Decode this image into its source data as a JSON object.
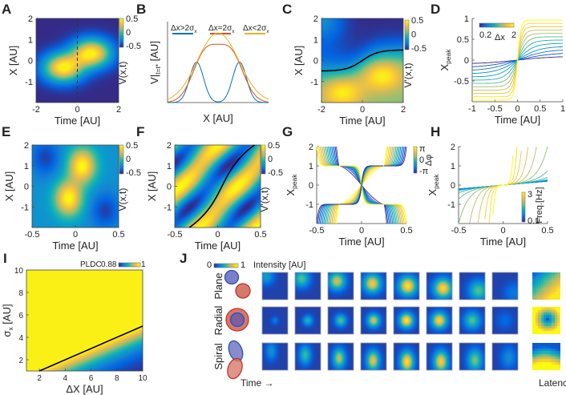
{
  "panel_labels": [
    "A",
    "B",
    "C",
    "D",
    "E",
    "F",
    "G",
    "H",
    "I",
    "J"
  ],
  "chart_data": [
    {
      "panel": "A",
      "type": "heatmap",
      "xlabel": "Time [AU]",
      "ylabel": "X [AU]",
      "xlim": [
        -2,
        2
      ],
      "ylim": [
        -2,
        2
      ],
      "xticks": [
        -2,
        0,
        2
      ],
      "yticks": [
        -1,
        0,
        1,
        2
      ],
      "colorbar": {
        "label": "V(x,t)",
        "ticks": [
          "0.5",
          "0",
          "-0.5"
        ]
      },
      "reference_line": {
        "style": "dashed",
        "time": 0
      }
    },
    {
      "panel": "B",
      "type": "line",
      "xlabel": "X [AU]",
      "ylabel": "V|",
      "ylabel_sub": "t=t*",
      "ylabel_tail": " [AU]",
      "series": [
        {
          "name": "Δx>2σ",
          "name_sub": "x",
          "color": "#0072BD"
        },
        {
          "name": "Δx=2σ",
          "name_sub": "x",
          "color": "#D95319"
        },
        {
          "name": "Δx<2σ",
          "name_sub": "x",
          "color": "#EDB120"
        }
      ]
    },
    {
      "panel": "C",
      "type": "heatmap",
      "xlabel": "Time [AU]",
      "ylabel": "X [AU]",
      "xlim": [
        -2,
        2
      ],
      "ylim": [
        -2,
        2
      ],
      "xticks": [
        -2,
        0,
        2
      ],
      "yticks": [
        -1,
        0,
        1,
        2
      ],
      "colorbar": {
        "label": "V'(x,t)",
        "ticks": [
          "0.5",
          "0",
          "-0.5"
        ]
      }
    },
    {
      "panel": "D",
      "type": "line",
      "xlabel": "Time [AU]",
      "ylabel": "X",
      "ylabel_sub": "peak",
      "xlim": [
        -1,
        1
      ],
      "ylim": [
        -1,
        1
      ],
      "xticks": [
        -1,
        -0.5,
        0,
        0.5,
        1
      ],
      "yticks": [
        -0.5,
        0,
        0.5,
        1
      ],
      "colorbar": {
        "label": "Δx",
        "ticks": [
          "0.2",
          "2"
        ]
      },
      "delta_x": [
        0.2,
        0.36,
        0.53,
        0.69,
        0.85,
        1.02,
        1.18,
        1.35,
        1.51,
        1.67,
        1.84,
        2.0
      ]
    },
    {
      "panel": "E",
      "type": "heatmap",
      "xlabel": "Time [AU]",
      "ylabel": "X [AU]",
      "xlim": [
        -0.5,
        0.5
      ],
      "ylim": [
        -2,
        2
      ],
      "xticks": [
        -0.5,
        0,
        0.5
      ],
      "yticks": [
        -1,
        0,
        1,
        2
      ],
      "colorbar": {
        "label": "V(x,t)",
        "ticks": [
          "0.5",
          "0",
          "-0.5"
        ]
      }
    },
    {
      "panel": "F",
      "type": "heatmap",
      "xlabel": "Time [AU]",
      "ylabel": "X [AU]",
      "xlim": [
        -0.5,
        0.5
      ],
      "ylim": [
        -2,
        2
      ],
      "xticks": [
        -0.5,
        0,
        0.5
      ],
      "yticks": [
        -1,
        0,
        1,
        2
      ],
      "colorbar": {
        "label": "V'(x,t)",
        "ticks": [
          "0.5",
          "0",
          "-0.5"
        ]
      }
    },
    {
      "panel": "G",
      "type": "line",
      "xlabel": "Time [AU]",
      "ylabel": "X",
      "ylabel_sub": "peak",
      "xlim": [
        -0.5,
        0.5
      ],
      "ylim": [
        -2,
        2
      ],
      "xticks": [
        -0.5,
        0,
        0.5
      ],
      "yticks": [
        -1,
        0,
        1,
        2
      ],
      "colorbar": {
        "label": "Δφ",
        "ticks": [
          "π",
          "0",
          "-π"
        ]
      },
      "phase_count": 18
    },
    {
      "panel": "H",
      "type": "line",
      "xlabel": "Time [AU]",
      "ylabel": "X",
      "ylabel_sub": "peak",
      "xlim": [
        -0.5,
        0.5
      ],
      "ylim": [
        -2,
        2
      ],
      "xticks": [
        -0.5,
        0,
        0.5
      ],
      "yticks": [
        -1,
        0,
        1,
        2
      ],
      "colorbar": {
        "label": "Freq.[Hz]",
        "ticks": [
          "3",
          "0.1"
        ]
      },
      "frequencies": [
        0.1,
        0.13,
        0.17,
        0.23,
        0.3,
        0.4,
        0.53,
        0.7,
        0.93,
        1.2,
        1.6,
        2.1,
        2.5,
        3.0
      ]
    },
    {
      "panel": "I",
      "type": "heatmap",
      "xlabel": "ΔX [AU]",
      "ylabel": "σ",
      "ylabel_sub": "x",
      "ylabel_tail": " [AU]",
      "xlim": [
        1,
        10
      ],
      "ylim": [
        1,
        10
      ],
      "xticks": [
        2,
        4,
        6,
        8,
        10
      ],
      "yticks": [
        2,
        4,
        6,
        8,
        10
      ],
      "colorbar": {
        "label": "PLDC",
        "ticks": [
          "0.88",
          "1"
        ]
      },
      "boundary_slope": 0.5
    },
    {
      "panel": "J",
      "type": "heatmap",
      "colorbar": {
        "ticks": [
          "0",
          "1"
        ],
        "label": "Intensity [AU]"
      },
      "xlabel": "Time →",
      "latency_label": "Latency",
      "rows": [
        {
          "label": "Plane",
          "peak_intensity": [
            0.3,
            0.5,
            0.7,
            0.8,
            0.88,
            0.85,
            0.5,
            0.15
          ]
        },
        {
          "label": "Radial",
          "peak_intensity": [
            0.15,
            0.4,
            0.5,
            0.7,
            0.9,
            0.85,
            0.5,
            0.1
          ]
        },
        {
          "label": "Spiral",
          "peak_intensity": [
            0.25,
            0.45,
            0.65,
            0.75,
            0.88,
            0.82,
            0.55,
            0.22
          ]
        }
      ]
    }
  ]
}
